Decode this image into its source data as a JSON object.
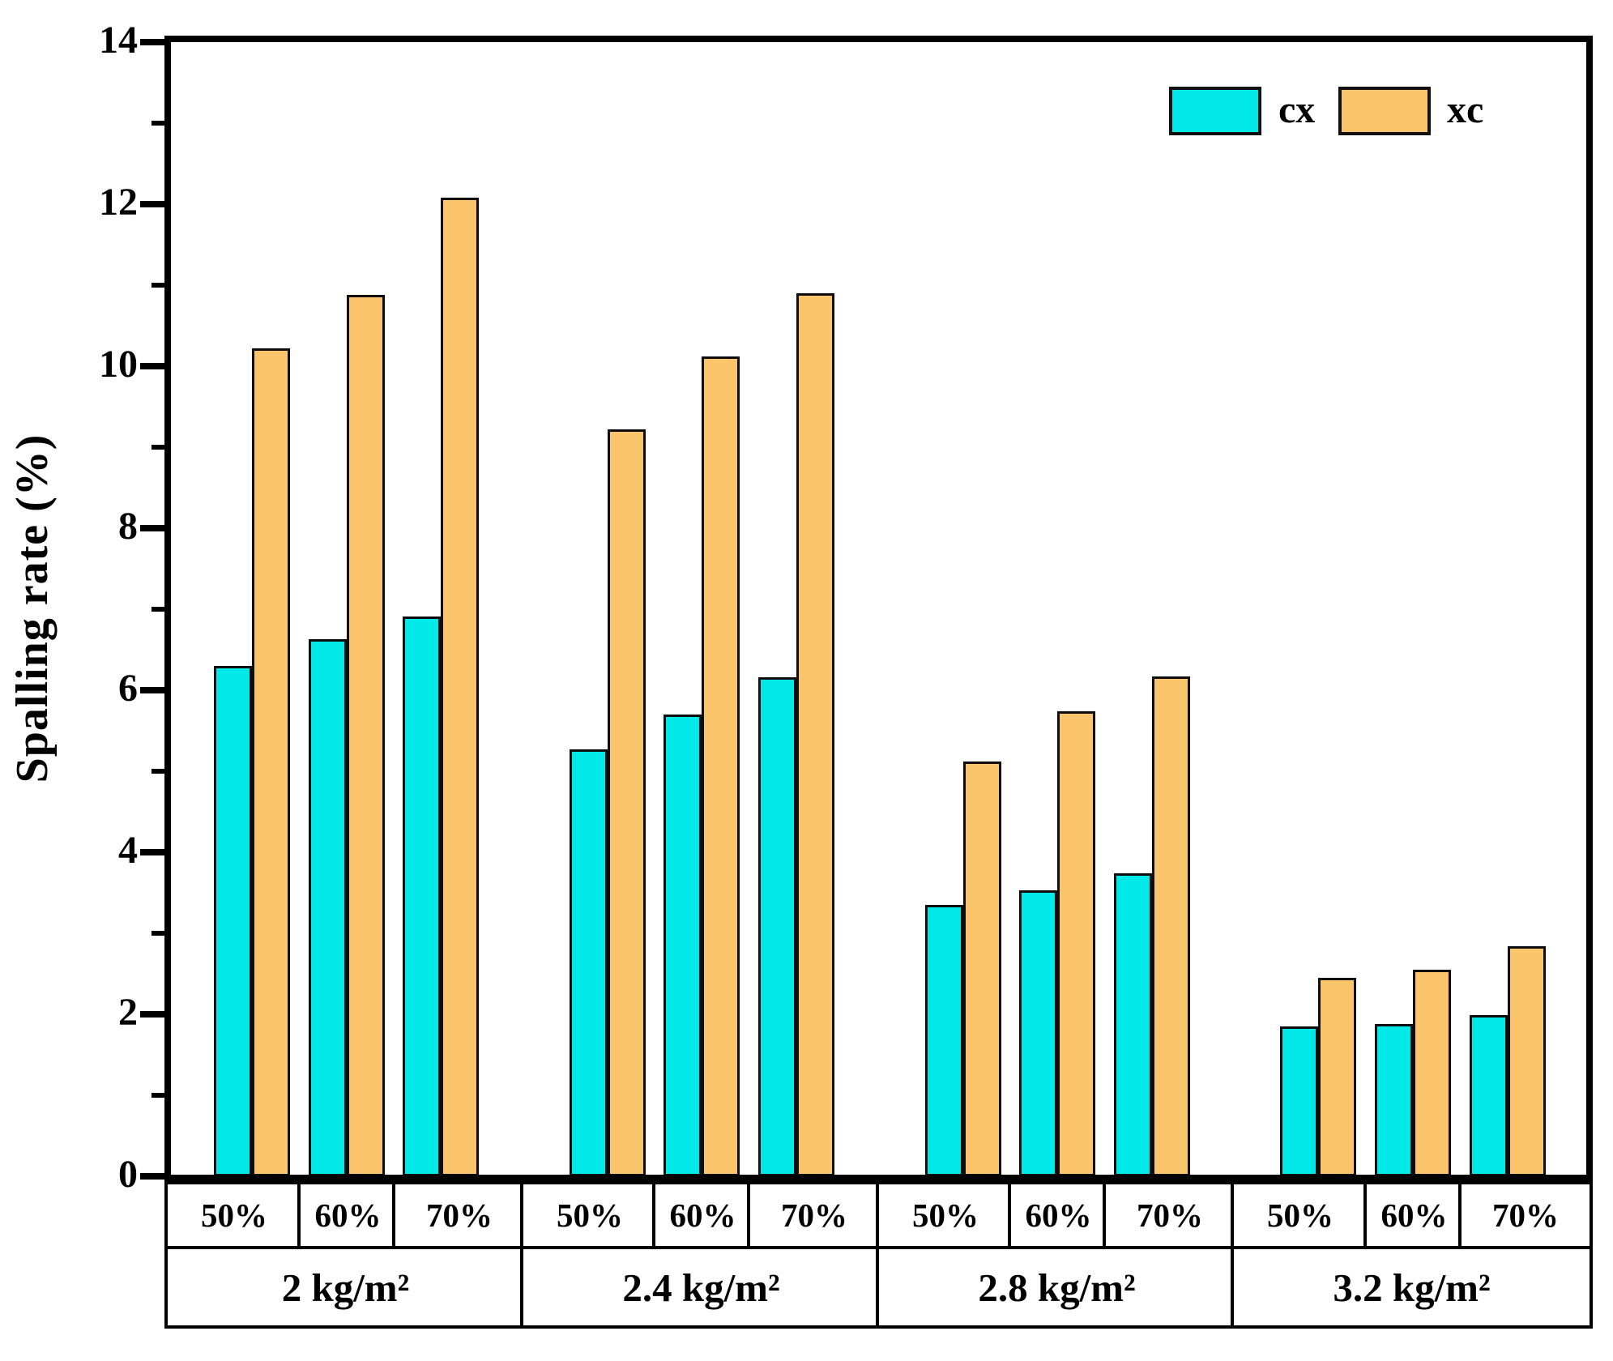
{
  "chart_data": {
    "type": "bar",
    "title": "",
    "ylabel": "Spalling rate (%)",
    "xlabel": "",
    "ylim": [
      0,
      14
    ],
    "y_major_step": 2,
    "y_minor_step": 1,
    "grid": false,
    "legend_position": "top-right",
    "groups": [
      "2 kg/m²",
      "2.4 kg/m²",
      "2.8 kg/m²",
      "3.2 kg/m²"
    ],
    "subcategories": [
      "50%",
      "60%",
      "70%"
    ],
    "series": [
      {
        "name": "cx",
        "color": "#00E9E9",
        "values": [
          [
            6.3,
            6.63,
            6.91
          ],
          [
            5.27,
            5.7,
            6.16
          ],
          [
            3.35,
            3.53,
            3.74
          ],
          [
            1.85,
            1.88,
            1.99
          ]
        ]
      },
      {
        "name": "xc",
        "color": "#FAC46A",
        "values": [
          [
            10.22,
            10.88,
            12.08
          ],
          [
            9.22,
            10.12,
            10.9
          ],
          [
            5.12,
            5.74,
            6.17
          ],
          [
            2.45,
            2.55,
            2.84
          ]
        ]
      }
    ],
    "bar_border_color": "#000000",
    "axis_color": "#000000",
    "y_tick_labels": [
      "0",
      "2",
      "4",
      "6",
      "8",
      "10",
      "12",
      "14"
    ]
  }
}
